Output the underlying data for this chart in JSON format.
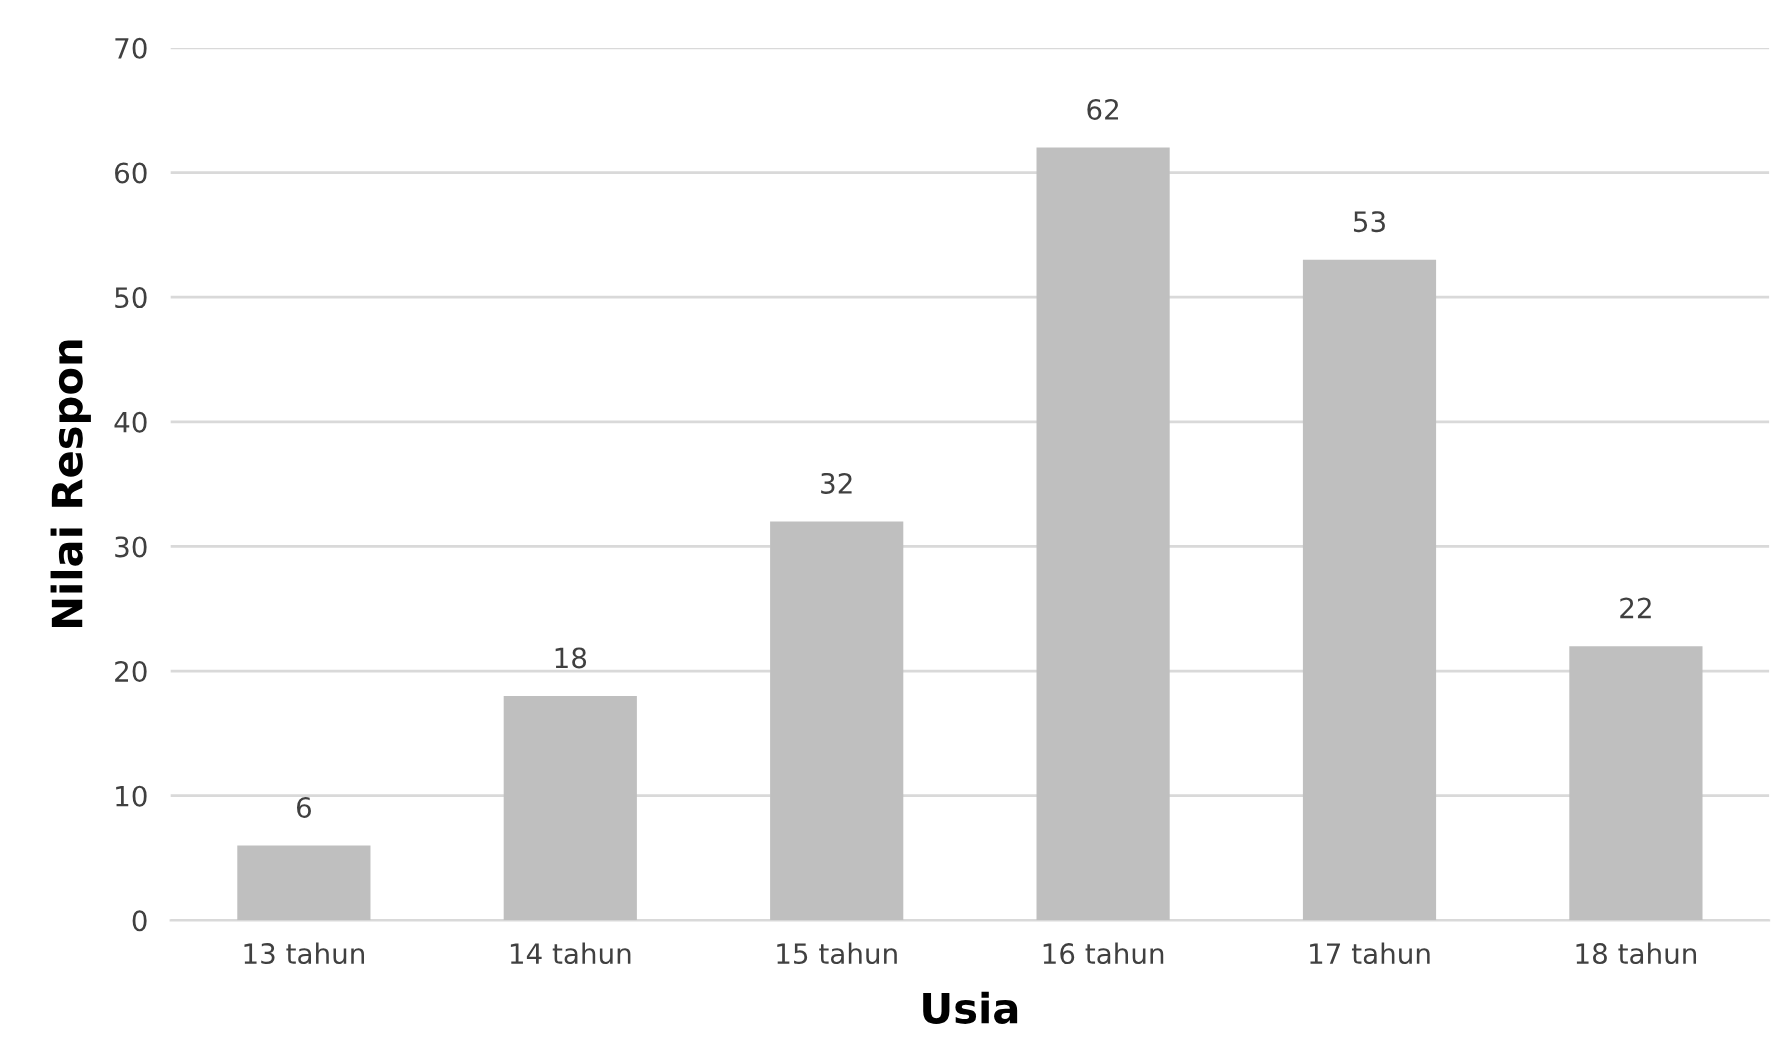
{
  "chart_data": {
    "type": "bar",
    "xlabel": "Usia",
    "ylabel": "Nilai Respon",
    "categories": [
      "13 tahun",
      "14 tahun",
      "15 tahun",
      "16 tahun",
      "17 tahun",
      "18 tahun"
    ],
    "values": [
      6,
      18,
      32,
      62,
      53,
      22
    ],
    "color": "#bfbfbf",
    "ylim": [
      0,
      70
    ],
    "yticks": [
      0,
      10,
      20,
      30,
      40,
      50,
      60,
      70
    ],
    "grid": "y",
    "data_labels": true
  }
}
